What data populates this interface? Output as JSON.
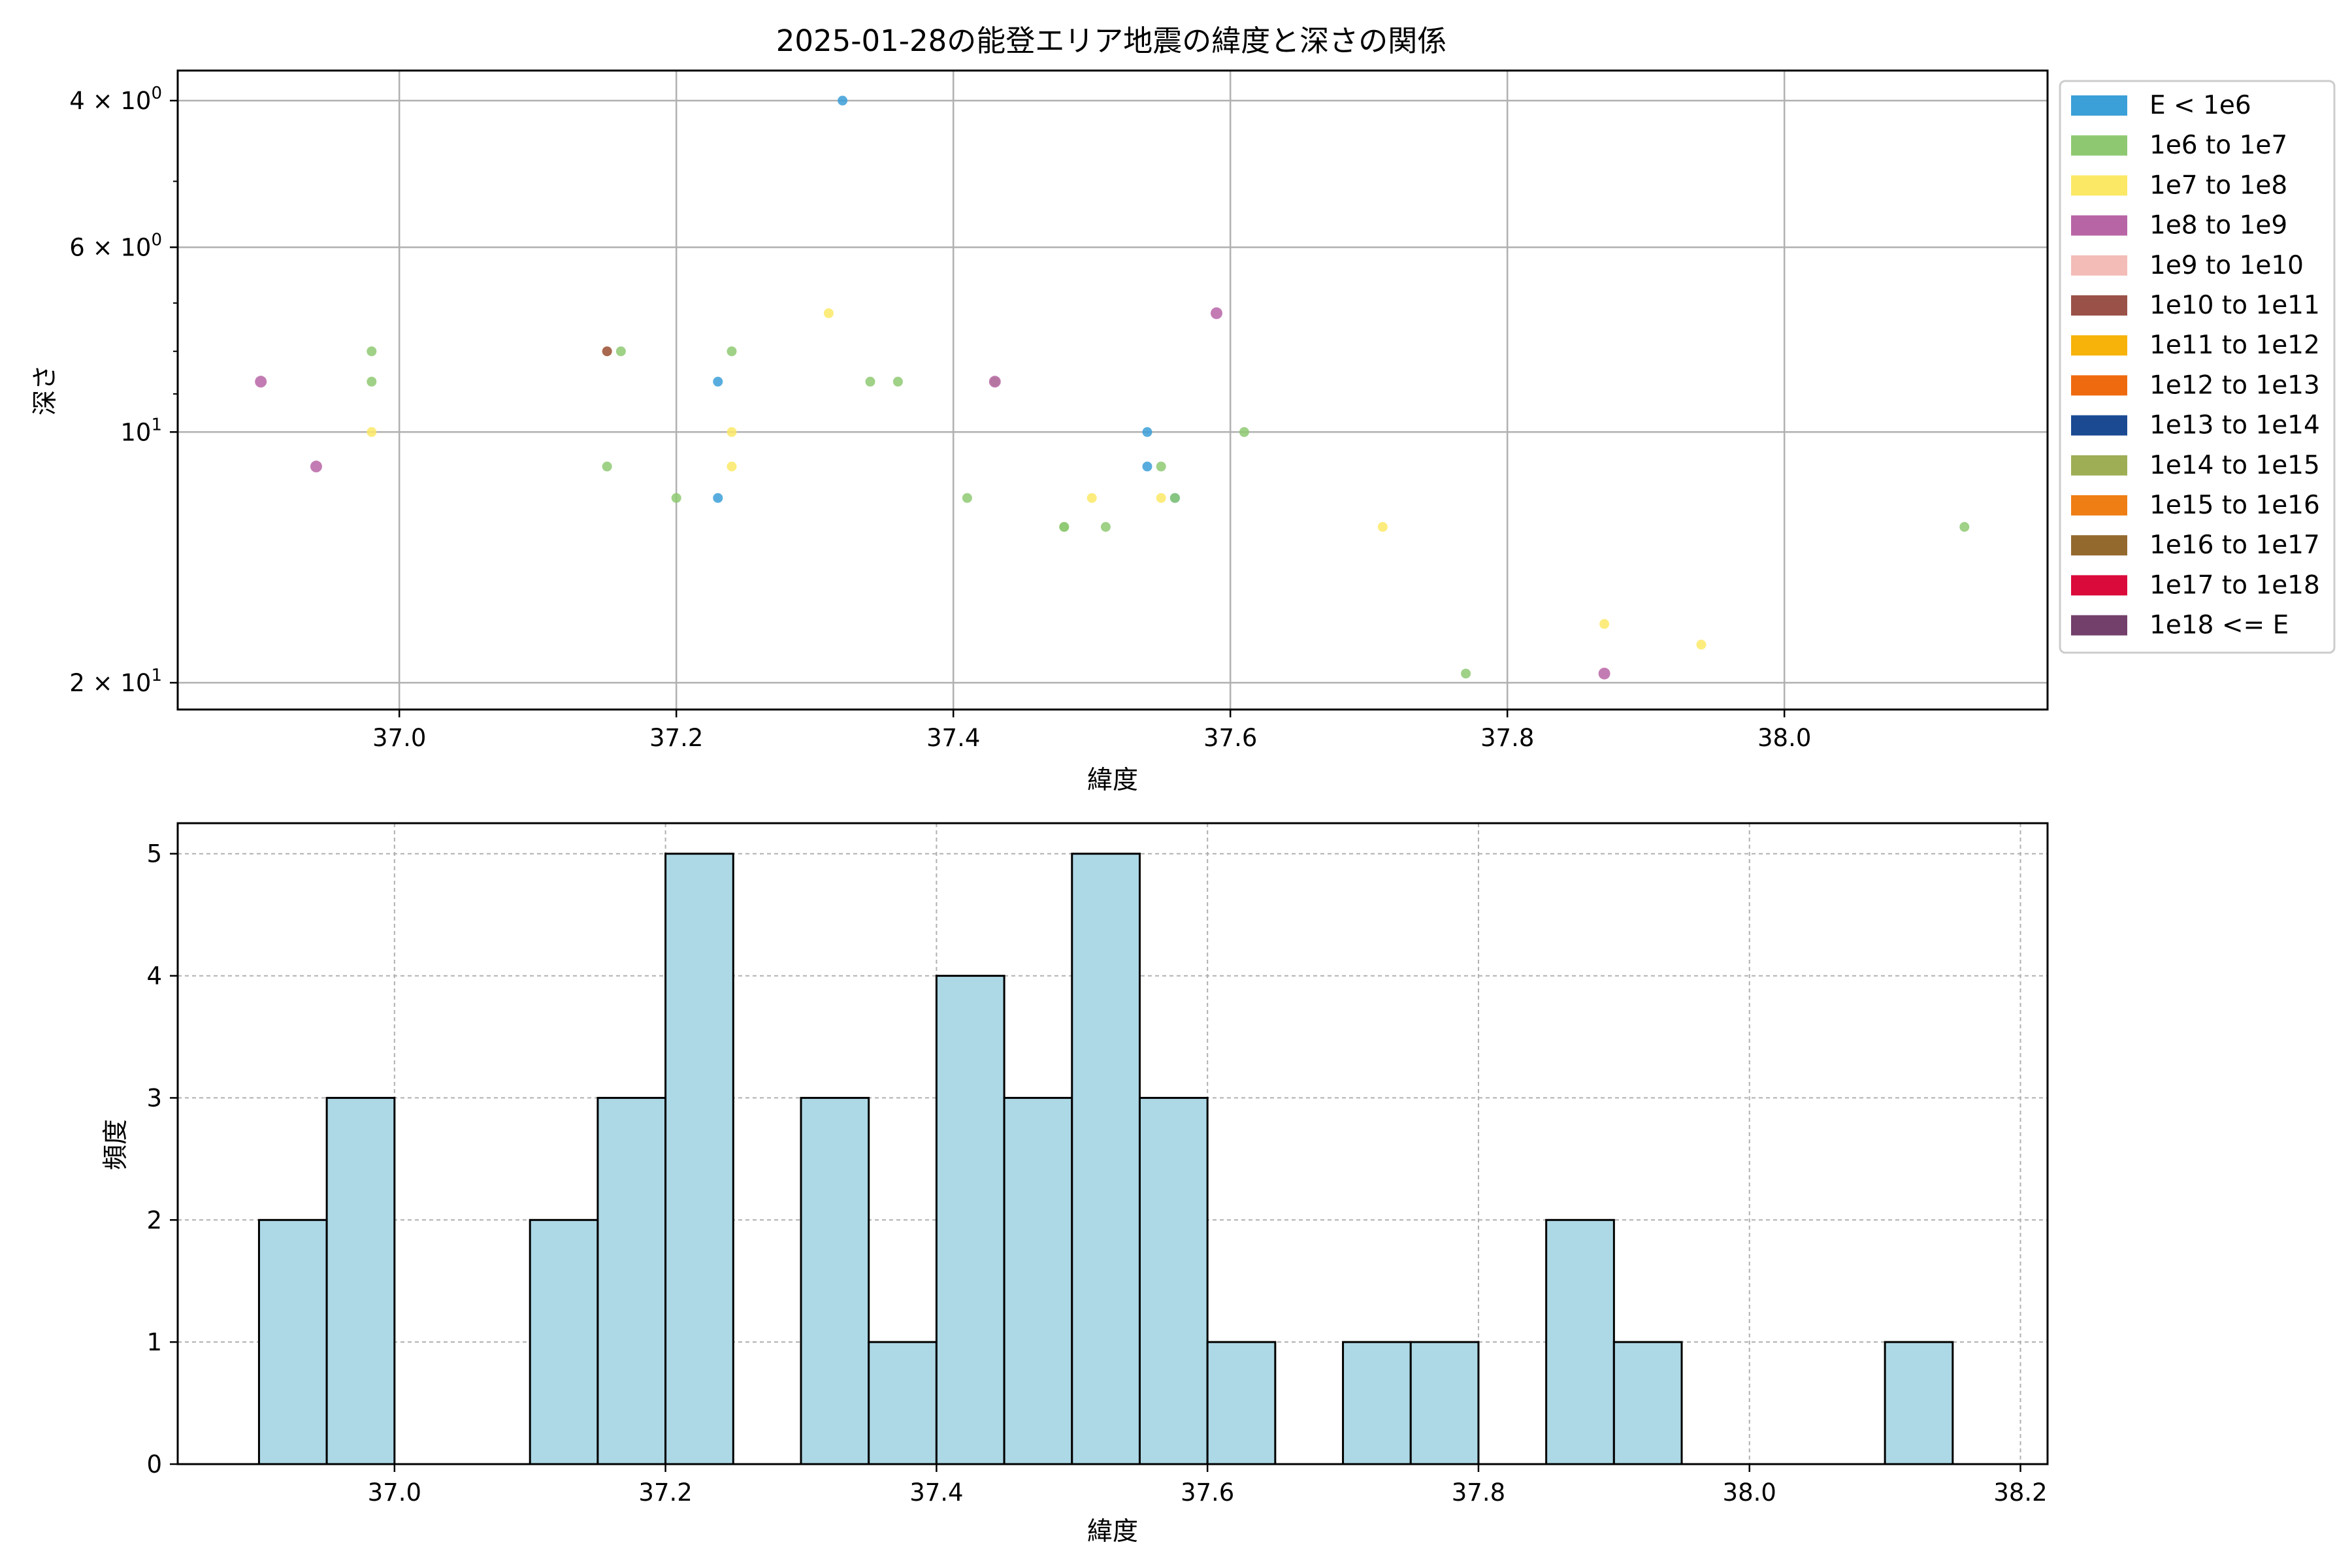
{
  "chart_data": [
    {
      "type": "scatter",
      "title": "2025-01-28の能登エリア地震の緯度と深さの関係",
      "xlabel": "緯度",
      "ylabel": "深さ",
      "xlim": [
        36.84,
        38.19
      ],
      "yscale": "log",
      "y_inverted": true,
      "ylim": [
        4,
        21
      ],
      "x_ticks": [
        "37.0",
        "37.2",
        "37.4",
        "37.6",
        "37.8",
        "38.0"
      ],
      "x_tick_values": [
        37.0,
        37.2,
        37.4,
        37.6,
        37.8,
        38.0
      ],
      "y_ticks": [
        {
          "value": 4,
          "base": "4 × 10",
          "exp": "0"
        },
        {
          "value": 6,
          "base": "6 × 10",
          "exp": "0"
        },
        {
          "value": 10,
          "base": "10",
          "exp": "1"
        },
        {
          "value": 20,
          "base": "2 × 10",
          "exp": "1"
        }
      ],
      "y_minor_ticks": [
        5,
        7,
        8,
        9
      ],
      "grid": true,
      "legend_position": "outside-right",
      "legend": [
        {
          "label": "E < 1e6",
          "color": "#3b9fd8"
        },
        {
          "label": "1e6 to 1e7",
          "color": "#8ec972"
        },
        {
          "label": "1e7 to 1e8",
          "color": "#fbe966"
        },
        {
          "label": "1e8 to 1e9",
          "color": "#b865a6"
        },
        {
          "label": "1e9 to 1e10",
          "color": "#f3bcb7"
        },
        {
          "label": "1e10 to 1e11",
          "color": "#9a5148"
        },
        {
          "label": "1e11 to 1e12",
          "color": "#f7b30a"
        },
        {
          "label": "1e12 to 1e13",
          "color": "#ef6a0f"
        },
        {
          "label": "1e13 to 1e14",
          "color": "#1b4a93"
        },
        {
          "label": "1e14 to 1e15",
          "color": "#9dae55"
        },
        {
          "label": "1e15 to 1e16",
          "color": "#ef7e14"
        },
        {
          "label": "1e16 to 1e17",
          "color": "#94692d"
        },
        {
          "label": "1e17 to 1e18",
          "color": "#da0a3a"
        },
        {
          "label": "1e18 <= E",
          "color": "#733f6b"
        }
      ],
      "points": [
        {
          "x": 37.32,
          "y": 4.0,
          "c": 0
        },
        {
          "x": 37.23,
          "y": 8.7,
          "c": 0
        },
        {
          "x": 37.54,
          "y": 10.0,
          "c": 0
        },
        {
          "x": 37.54,
          "y": 11.0,
          "c": 0
        },
        {
          "x": 37.23,
          "y": 12.0,
          "c": 0
        },
        {
          "x": 37.56,
          "y": 12.0,
          "c": 0
        },
        {
          "x": 36.98,
          "y": 8.0,
          "c": 1
        },
        {
          "x": 36.98,
          "y": 8.7,
          "c": 1
        },
        {
          "x": 37.16,
          "y": 8.0,
          "c": 1
        },
        {
          "x": 37.24,
          "y": 8.0,
          "c": 1
        },
        {
          "x": 37.34,
          "y": 8.7,
          "c": 1
        },
        {
          "x": 37.36,
          "y": 8.7,
          "c": 1
        },
        {
          "x": 37.43,
          "y": 8.7,
          "c": 1
        },
        {
          "x": 37.15,
          "y": 11.0,
          "c": 1
        },
        {
          "x": 37.2,
          "y": 12.0,
          "c": 1
        },
        {
          "x": 37.41,
          "y": 12.0,
          "c": 1
        },
        {
          "x": 37.55,
          "y": 11.0,
          "c": 1
        },
        {
          "x": 37.56,
          "y": 12.0,
          "c": 1
        },
        {
          "x": 37.61,
          "y": 10.0,
          "c": 1
        },
        {
          "x": 37.48,
          "y": 13.0,
          "c": 1
        },
        {
          "x": 37.48,
          "y": 13.0,
          "c": 1
        },
        {
          "x": 37.51,
          "y": 13.0,
          "c": 1
        },
        {
          "x": 37.77,
          "y": 19.5,
          "c": 1
        },
        {
          "x": 38.13,
          "y": 13.0,
          "c": 1
        },
        {
          "x": 36.98,
          "y": 10.0,
          "c": 2
        },
        {
          "x": 37.15,
          "y": 8.0,
          "c": 2
        },
        {
          "x": 37.24,
          "y": 10.0,
          "c": 2
        },
        {
          "x": 37.24,
          "y": 11.0,
          "c": 2
        },
        {
          "x": 37.31,
          "y": 7.2,
          "c": 2
        },
        {
          "x": 37.5,
          "y": 12.0,
          "c": 2
        },
        {
          "x": 37.55,
          "y": 12.0,
          "c": 2
        },
        {
          "x": 37.71,
          "y": 13.0,
          "c": 2
        },
        {
          "x": 37.87,
          "y": 17.0,
          "c": 2
        },
        {
          "x": 37.94,
          "y": 18.0,
          "c": 2
        },
        {
          "x": 36.9,
          "y": 8.7,
          "c": 3
        },
        {
          "x": 36.94,
          "y": 11.0,
          "c": 3
        },
        {
          "x": 37.43,
          "y": 8.7,
          "c": 3
        },
        {
          "x": 37.59,
          "y": 7.2,
          "c": 3
        },
        {
          "x": 37.87,
          "y": 19.5,
          "c": 3
        },
        {
          "x": 37.15,
          "y": 8.0,
          "c": 5
        }
      ]
    },
    {
      "type": "bar",
      "xlabel": "緯度",
      "ylabel": "頻度",
      "xlim": [
        36.84,
        38.22
      ],
      "ylim": [
        0,
        5.25
      ],
      "x_ticks": [
        "37.0",
        "37.2",
        "37.4",
        "37.6",
        "37.8",
        "38.0",
        "38.2"
      ],
      "x_tick_values": [
        37.0,
        37.2,
        37.4,
        37.6,
        37.8,
        38.0,
        38.2
      ],
      "y_ticks": [
        "0",
        "1",
        "2",
        "3",
        "4",
        "5"
      ],
      "grid": true,
      "bar_color": "#add8e6",
      "bin_start": 36.9,
      "bin_width": 0.05,
      "values": [
        2,
        3,
        0,
        0,
        2,
        3,
        5,
        0,
        3,
        1,
        4,
        3,
        5,
        3,
        1,
        0,
        1,
        1,
        0,
        2,
        1,
        0,
        0,
        0,
        1
      ]
    }
  ]
}
